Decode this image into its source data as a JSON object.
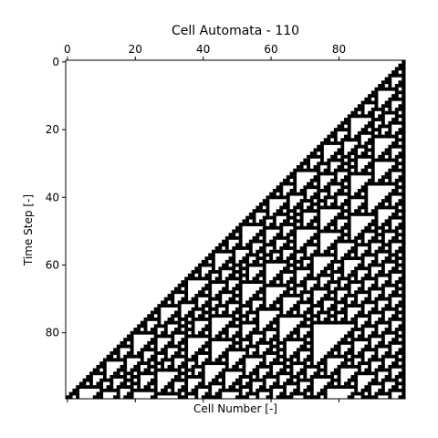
{
  "chart_data": {
    "type": "heatmap",
    "title": "Cell Automata - 110",
    "xlabel": "Cell Number [-]",
    "ylabel": "Time Step [-]",
    "rule": 110,
    "x_range": [
      0,
      99
    ],
    "y_range": [
      0,
      99
    ],
    "cells": 100,
    "steps": 100,
    "x_ticks": [
      0,
      20,
      40,
      60,
      80
    ],
    "y_ticks": [
      0,
      20,
      40,
      60,
      80
    ],
    "x_tick_labels": [
      "0",
      "20",
      "40",
      "60",
      "80"
    ],
    "y_tick_labels": [
      "0",
      "20",
      "40",
      "60",
      "80"
    ],
    "x_axis_position": "top",
    "grid": false,
    "colors": {
      "on": "#000000",
      "off": "#ffffff"
    }
  }
}
